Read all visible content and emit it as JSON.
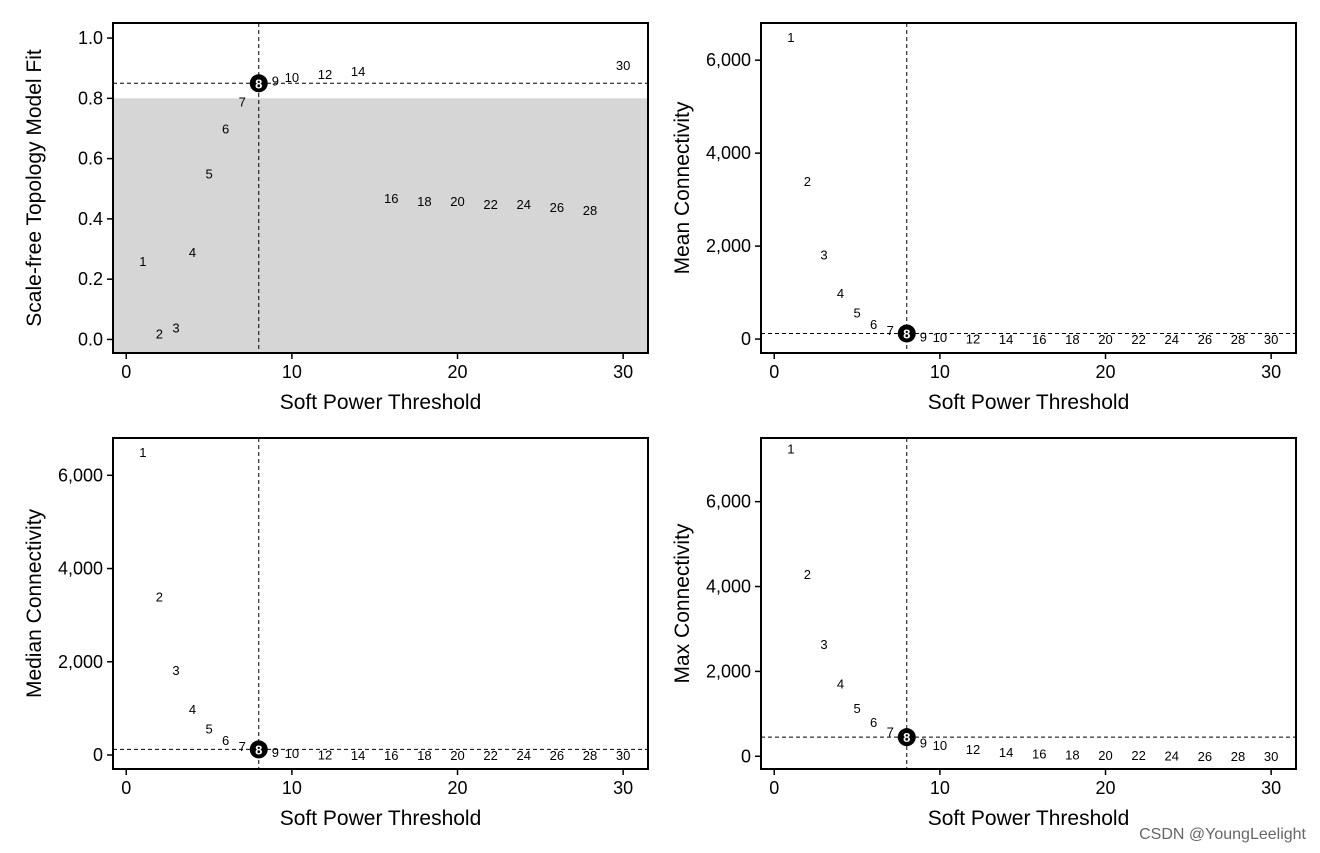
{
  "chart_data": [
    {
      "type": "scatter",
      "xlabel": "Soft Power Threshold",
      "ylabel": "Scale-free Topology Model Fit",
      "xlim": [
        -0.8,
        31.5
      ],
      "ylim": [
        -0.045,
        1.05
      ],
      "xticks": [
        0,
        10,
        20,
        30
      ],
      "xtick_labels": [
        "0",
        "10",
        "20",
        "30"
      ],
      "yticks": [
        0,
        0.2,
        0.4,
        0.6,
        0.8,
        1.0
      ],
      "ytick_labels": [
        "0.0",
        "0.2",
        "0.4",
        "0.6",
        "0.8",
        "1.0"
      ],
      "shaded_region": [
        -0.045,
        0.8
      ],
      "hline": 0.85,
      "vline": 8,
      "highlight_power": 8,
      "x": [
        1,
        2,
        3,
        4,
        5,
        6,
        7,
        8,
        9,
        10,
        12,
        14,
        16,
        18,
        20,
        22,
        24,
        26,
        28,
        30
      ],
      "y": [
        0.26,
        0.02,
        0.04,
        0.29,
        0.55,
        0.7,
        0.79,
        0.85,
        0.86,
        0.87,
        0.88,
        0.89,
        0.47,
        0.46,
        0.46,
        0.45,
        0.45,
        0.44,
        0.43,
        0.91
      ],
      "labels": [
        "1",
        "2",
        "3",
        "4",
        "5",
        "6",
        "7",
        "8",
        "9",
        "10",
        "12",
        "14",
        "16",
        "18",
        "20",
        "22",
        "24",
        "26",
        "28",
        "30"
      ]
    },
    {
      "type": "scatter",
      "xlabel": "Soft Power Threshold",
      "ylabel": "Mean Connectivity",
      "xlim": [
        -0.8,
        31.5
      ],
      "ylim": [
        -300,
        6800
      ],
      "xticks": [
        0,
        10,
        20,
        30
      ],
      "xtick_labels": [
        "0",
        "10",
        "20",
        "30"
      ],
      "yticks": [
        0,
        2000,
        4000,
        6000
      ],
      "ytick_labels": [
        "0",
        "2,000",
        "4,000",
        "6,000"
      ],
      "hline": 120,
      "vline": 8,
      "highlight_power": 8,
      "x": [
        1,
        2,
        3,
        4,
        5,
        6,
        7,
        8,
        9,
        10,
        12,
        14,
        16,
        18,
        20,
        22,
        24,
        26,
        28,
        30
      ],
      "y": [
        6500,
        3400,
        1820,
        990,
        570,
        320,
        190,
        120,
        60,
        40,
        10,
        5,
        3,
        2,
        1,
        1,
        1,
        0,
        0,
        0
      ],
      "labels": [
        "1",
        "2",
        "3",
        "4",
        "5",
        "6",
        "7",
        "8",
        "9",
        "10",
        "12",
        "14",
        "16",
        "18",
        "20",
        "22",
        "24",
        "26",
        "28",
        "30"
      ]
    },
    {
      "type": "scatter",
      "xlabel": "Soft Power Threshold",
      "ylabel": "Median Connectivity",
      "xlim": [
        -0.8,
        31.5
      ],
      "ylim": [
        -300,
        6800
      ],
      "xticks": [
        0,
        10,
        20,
        30
      ],
      "xtick_labels": [
        "0",
        "10",
        "20",
        "30"
      ],
      "yticks": [
        0,
        2000,
        4000,
        6000
      ],
      "ytick_labels": [
        "0",
        "2,000",
        "4,000",
        "6,000"
      ],
      "hline": 120,
      "vline": 8,
      "highlight_power": 8,
      "x": [
        1,
        2,
        3,
        4,
        5,
        6,
        7,
        8,
        9,
        10,
        12,
        14,
        16,
        18,
        20,
        22,
        24,
        26,
        28,
        30
      ],
      "y": [
        6500,
        3400,
        1820,
        990,
        570,
        320,
        190,
        120,
        60,
        40,
        10,
        5,
        3,
        2,
        1,
        1,
        1,
        0,
        0,
        0
      ],
      "labels": [
        "1",
        "2",
        "3",
        "4",
        "5",
        "6",
        "7",
        "8",
        "9",
        "10",
        "12",
        "14",
        "16",
        "18",
        "20",
        "22",
        "24",
        "26",
        "28",
        "30"
      ]
    },
    {
      "type": "scatter",
      "xlabel": "Soft Power Threshold",
      "ylabel": "Max Connectivity",
      "xlim": [
        -0.8,
        31.5
      ],
      "ylim": [
        -300,
        7500
      ],
      "xticks": [
        0,
        10,
        20,
        30
      ],
      "xtick_labels": [
        "0",
        "10",
        "20",
        "30"
      ],
      "yticks": [
        0,
        2000,
        4000,
        6000
      ],
      "ytick_labels": [
        "0",
        "2,000",
        "4,000",
        "6,000"
      ],
      "hline": 450,
      "vline": 8,
      "highlight_power": 8,
      "x": [
        1,
        2,
        3,
        4,
        5,
        6,
        7,
        8,
        9,
        10,
        12,
        14,
        16,
        18,
        20,
        22,
        24,
        26,
        28,
        30
      ],
      "y": [
        7250,
        4300,
        2650,
        1720,
        1140,
        810,
        580,
        450,
        320,
        260,
        170,
        100,
        60,
        40,
        30,
        30,
        20,
        10,
        10,
        10
      ],
      "labels": [
        "1",
        "2",
        "3",
        "4",
        "5",
        "6",
        "7",
        "8",
        "9",
        "10",
        "12",
        "14",
        "16",
        "18",
        "20",
        "22",
        "24",
        "26",
        "28",
        "30"
      ]
    }
  ],
  "watermark": "CSDN @YoungLeelight"
}
